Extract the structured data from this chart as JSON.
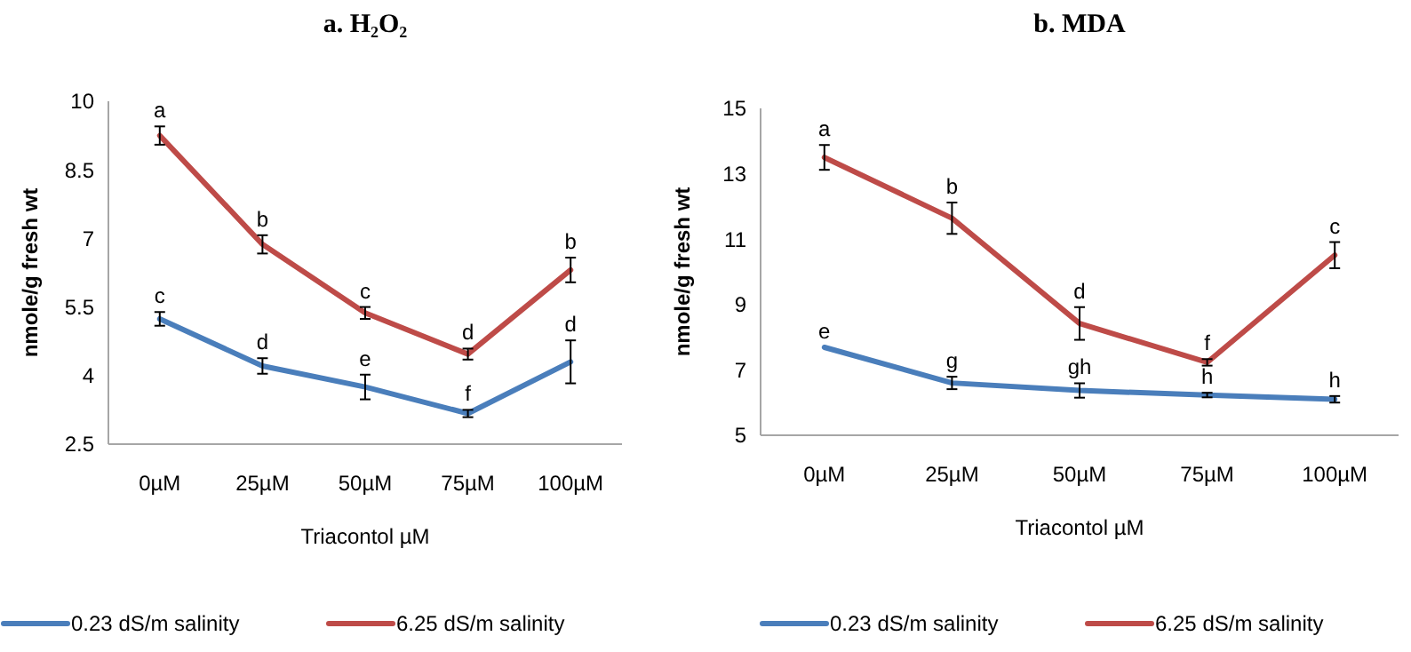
{
  "chart_data": [
    {
      "type": "line",
      "title": "a.   H₂O₂",
      "xlabel": "Triacontol µM",
      "ylabel": "nmole/g fresh wt",
      "categories": [
        "0µM",
        "25µM",
        "50µM",
        "75µM",
        "100µM"
      ],
      "ylim": [
        2.5,
        10
      ],
      "yticks": [
        2.5,
        4,
        5.5,
        7,
        8.5,
        10
      ],
      "grid": false,
      "legend": "bottom",
      "marker": "none",
      "series": [
        {
          "name": "0.23 dS/m salinity",
          "color": "#4a7ebb",
          "values": [
            5.24,
            4.21,
            3.75,
            3.17,
            4.3
          ],
          "errors": [
            0.15,
            0.17,
            0.27,
            0.08,
            0.47
          ]
        },
        {
          "name": "6.25 dS/m salinity",
          "color": "#be4b48",
          "values": [
            9.25,
            6.87,
            5.37,
            4.47,
            6.31
          ],
          "errors": [
            0.2,
            0.2,
            0.13,
            0.12,
            0.27
          ]
        }
      ],
      "annotations": [
        {
          "text": "a",
          "x": "0µM",
          "y": 9.25
        },
        {
          "text": "b",
          "x": "25µM",
          "y": 6.87
        },
        {
          "text": "c",
          "x": "50µM",
          "y": 5.37
        },
        {
          "text": "d",
          "x": "75µM",
          "y": 4.47
        },
        {
          "text": "b",
          "x": "100µM",
          "y": 6.31
        },
        {
          "text": "c",
          "x": "0µM",
          "y": 5.24
        },
        {
          "text": "d",
          "x": "25µM",
          "y": 4.21
        },
        {
          "text": "e",
          "x": "50µM",
          "y": 3.75
        },
        {
          "text": "f",
          "x": "75µM",
          "y": 3.17
        },
        {
          "text": "d",
          "x": "100µM",
          "y": 4.3
        }
      ]
    },
    {
      "type": "line",
      "title": "b. MDA",
      "xlabel": "Triacontol µM",
      "ylabel": "nmole/g fresh wt",
      "categories": [
        "0µM",
        "25µM",
        "50µM",
        "75µM",
        "100µM"
      ],
      "ylim": [
        5,
        15
      ],
      "yticks": [
        5,
        7,
        9,
        11,
        13,
        15
      ],
      "grid": false,
      "legend": "bottom",
      "marker": "none",
      "series": [
        {
          "name": "0.23 dS/m salinity",
          "color": "#4a7ebb",
          "values": [
            7.69,
            6.6,
            6.37,
            6.23,
            6.1
          ],
          "errors": [
            null,
            0.19,
            0.22,
            0.07,
            0.1
          ]
        },
        {
          "name": "6.25 dS/m salinity",
          "color": "#be4b48",
          "values": [
            13.5,
            11.64,
            8.42,
            7.23,
            10.51
          ],
          "errors": [
            0.38,
            0.48,
            0.5,
            0.1,
            0.4
          ]
        }
      ],
      "annotations": [
        {
          "text": "a",
          "x": "0µM",
          "y": 13.5
        },
        {
          "text": "b",
          "x": "25µM",
          "y": 11.64
        },
        {
          "text": "d",
          "x": "50µM",
          "y": 8.42
        },
        {
          "text": "f",
          "x": "75µM",
          "y": 7.23
        },
        {
          "text": "c",
          "x": "100µM",
          "y": 10.51
        },
        {
          "text": "e",
          "x": "0µM",
          "y": 7.69
        },
        {
          "text": "g",
          "x": "25µM",
          "y": 6.6
        },
        {
          "text": "gh",
          "x": "50µM",
          "y": 6.37
        },
        {
          "text": "h",
          "x": "75µM",
          "y": 6.23
        },
        {
          "text": "h",
          "x": "100µM",
          "y": 6.1
        }
      ]
    }
  ]
}
